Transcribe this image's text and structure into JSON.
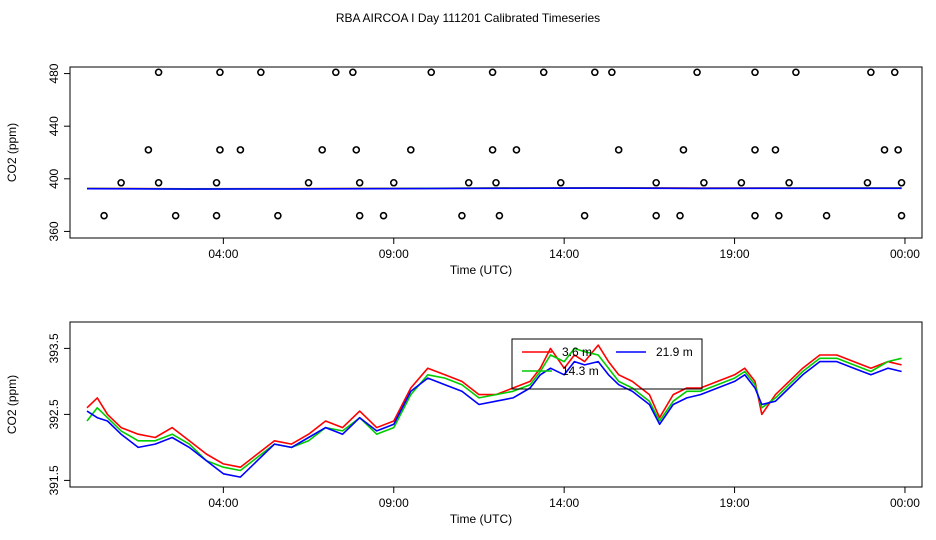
{
  "title": "RBA AIRCOA I  Day 111201  Calibrated Timeseries",
  "chart_data": [
    {
      "type": "line",
      "ylabel": "CO2 (ppm)",
      "xlabel": "Time (UTC)",
      "x_unit": "hours UTC",
      "xlim": [
        -0.5,
        24.5
      ],
      "ylim": [
        355,
        485
      ],
      "x_ticks": [
        4,
        9,
        14,
        19,
        24
      ],
      "x_tick_labels": [
        "04:00",
        "09:00",
        "14:00",
        "19:00",
        "00:00"
      ],
      "y_ticks": [
        360,
        400,
        440,
        480
      ],
      "y_tick_labels": [
        "360",
        "400",
        "440",
        "480"
      ],
      "grid": false,
      "series": [
        {
          "color": "#ff0000",
          "style": "line",
          "points": [
            [
              0.0,
              392.7
            ],
            [
              3.0,
              392.4
            ],
            [
              6.0,
              392.5
            ],
            [
              9.0,
              392.7
            ],
            [
              12.0,
              393.0
            ],
            [
              15.0,
              393.1
            ],
            [
              18.0,
              392.9
            ],
            [
              21.0,
              393.0
            ],
            [
              23.9,
              393.0
            ]
          ]
        },
        {
          "color": "#00cc00",
          "style": "line",
          "points": [
            [
              0.0,
              392.6
            ],
            [
              3.0,
              392.3
            ],
            [
              6.0,
              392.4
            ],
            [
              9.0,
              392.6
            ],
            [
              12.0,
              392.9
            ],
            [
              15.0,
              393.0
            ],
            [
              18.0,
              392.8
            ],
            [
              21.0,
              392.9
            ],
            [
              23.9,
              392.9
            ]
          ]
        },
        {
          "color": "#0000ff",
          "style": "line",
          "points": [
            [
              0.0,
              392.5
            ],
            [
              3.0,
              392.2
            ],
            [
              6.0,
              392.3
            ],
            [
              9.0,
              392.5
            ],
            [
              12.0,
              392.8
            ],
            [
              15.0,
              392.9
            ],
            [
              18.0,
              392.7
            ],
            [
              21.0,
              392.8
            ],
            [
              23.9,
              392.8
            ]
          ]
        },
        {
          "color": "#000000",
          "style": "points",
          "points": [
            [
              0.5,
              372
            ],
            [
              2.6,
              372
            ],
            [
              3.8,
              372
            ],
            [
              5.6,
              372
            ],
            [
              8.0,
              372
            ],
            [
              8.7,
              372
            ],
            [
              11.0,
              372
            ],
            [
              12.1,
              372
            ],
            [
              14.6,
              372
            ],
            [
              16.7,
              372
            ],
            [
              17.4,
              372
            ],
            [
              19.6,
              372
            ],
            [
              20.3,
              372
            ],
            [
              21.7,
              372
            ],
            [
              23.9,
              372
            ],
            [
              1.0,
              397
            ],
            [
              2.1,
              397
            ],
            [
              3.8,
              397
            ],
            [
              6.5,
              397
            ],
            [
              8.0,
              397
            ],
            [
              9.0,
              397
            ],
            [
              11.2,
              397
            ],
            [
              12.0,
              397
            ],
            [
              13.9,
              397
            ],
            [
              16.7,
              397
            ],
            [
              18.1,
              397
            ],
            [
              19.2,
              397
            ],
            [
              20.6,
              397
            ],
            [
              22.9,
              397
            ],
            [
              23.9,
              397
            ],
            [
              1.8,
              422
            ],
            [
              3.9,
              422
            ],
            [
              4.5,
              422
            ],
            [
              6.9,
              422
            ],
            [
              7.9,
              422
            ],
            [
              9.5,
              422
            ],
            [
              11.9,
              422
            ],
            [
              12.6,
              422
            ],
            [
              15.6,
              422
            ],
            [
              17.5,
              422
            ],
            [
              19.6,
              422
            ],
            [
              20.2,
              422
            ],
            [
              23.4,
              422
            ],
            [
              23.8,
              422
            ],
            [
              2.1,
              481
            ],
            [
              3.9,
              481
            ],
            [
              5.1,
              481
            ],
            [
              7.3,
              481
            ],
            [
              7.8,
              481
            ],
            [
              10.1,
              481
            ],
            [
              11.9,
              481
            ],
            [
              13.4,
              481
            ],
            [
              14.9,
              481
            ],
            [
              15.4,
              481
            ],
            [
              17.9,
              481
            ],
            [
              19.6,
              481
            ],
            [
              20.8,
              481
            ],
            [
              23.0,
              481
            ],
            [
              23.7,
              481
            ]
          ]
        }
      ]
    },
    {
      "type": "line",
      "ylabel": "CO2 (ppm)",
      "xlabel": "Time (UTC)",
      "x_unit": "hours UTC",
      "xlim": [
        -0.5,
        24.5
      ],
      "ylim": [
        391.4,
        393.9
      ],
      "x_ticks": [
        4,
        9,
        14,
        19,
        24
      ],
      "x_tick_labels": [
        "04:00",
        "09:00",
        "14:00",
        "19:00",
        "00:00"
      ],
      "y_ticks": [
        391.5,
        392.5,
        393.5
      ],
      "y_tick_labels": [
        "391.5",
        "392.5",
        "393.5"
      ],
      "grid": false,
      "legend": {
        "placement": "top-center",
        "entries": [
          {
            "label": "3.6 m",
            "color": "#ff0000"
          },
          {
            "label": "21.9 m",
            "color": "#0000ff"
          },
          {
            "label": "14.3 m",
            "color": "#00cc00"
          }
        ]
      },
      "series": [
        {
          "name": "3.6 m",
          "color": "#ff0000",
          "points": [
            [
              0.0,
              392.6
            ],
            [
              0.3,
              392.75
            ],
            [
              0.6,
              392.5
            ],
            [
              1.0,
              392.3
            ],
            [
              1.5,
              392.2
            ],
            [
              2.0,
              392.15
            ],
            [
              2.5,
              392.3
            ],
            [
              3.0,
              392.1
            ],
            [
              3.5,
              391.9
            ],
            [
              4.0,
              391.75
            ],
            [
              4.5,
              391.7
            ],
            [
              5.0,
              391.9
            ],
            [
              5.5,
              392.1
            ],
            [
              6.0,
              392.05
            ],
            [
              6.5,
              392.2
            ],
            [
              7.0,
              392.4
            ],
            [
              7.5,
              392.3
            ],
            [
              8.0,
              392.55
            ],
            [
              8.5,
              392.3
            ],
            [
              9.0,
              392.4
            ],
            [
              9.5,
              392.9
            ],
            [
              10.0,
              393.2
            ],
            [
              10.5,
              393.1
            ],
            [
              11.0,
              393.0
            ],
            [
              11.5,
              392.8
            ],
            [
              12.0,
              392.8
            ],
            [
              12.5,
              392.9
            ],
            [
              13.0,
              393.0
            ],
            [
              13.3,
              393.2
            ],
            [
              13.6,
              393.5
            ],
            [
              14.0,
              393.2
            ],
            [
              14.3,
              393.4
            ],
            [
              14.6,
              393.3
            ],
            [
              15.0,
              393.55
            ],
            [
              15.3,
              393.3
            ],
            [
              15.6,
              393.1
            ],
            [
              16.0,
              393.0
            ],
            [
              16.5,
              392.8
            ],
            [
              16.8,
              392.45
            ],
            [
              17.2,
              392.8
            ],
            [
              17.6,
              392.9
            ],
            [
              18.0,
              392.9
            ],
            [
              18.5,
              393.0
            ],
            [
              19.0,
              393.1
            ],
            [
              19.3,
              393.2
            ],
            [
              19.6,
              393.0
            ],
            [
              19.8,
              392.5
            ],
            [
              20.2,
              392.8
            ],
            [
              20.6,
              393.0
            ],
            [
              21.0,
              393.2
            ],
            [
              21.5,
              393.4
            ],
            [
              22.0,
              393.4
            ],
            [
              22.5,
              393.3
            ],
            [
              23.0,
              393.2
            ],
            [
              23.5,
              393.3
            ],
            [
              23.9,
              393.25
            ]
          ]
        },
        {
          "name": "14.3 m",
          "color": "#00cc00",
          "points": [
            [
              0.0,
              392.4
            ],
            [
              0.3,
              392.6
            ],
            [
              0.6,
              392.45
            ],
            [
              1.0,
              392.25
            ],
            [
              1.5,
              392.1
            ],
            [
              2.0,
              392.1
            ],
            [
              2.5,
              392.2
            ],
            [
              3.0,
              392.05
            ],
            [
              3.5,
              391.8
            ],
            [
              4.0,
              391.7
            ],
            [
              4.5,
              391.65
            ],
            [
              5.0,
              391.85
            ],
            [
              5.5,
              392.05
            ],
            [
              6.0,
              392.0
            ],
            [
              6.5,
              392.1
            ],
            [
              7.0,
              392.3
            ],
            [
              7.5,
              392.25
            ],
            [
              8.0,
              392.45
            ],
            [
              8.5,
              392.2
            ],
            [
              9.0,
              392.3
            ],
            [
              9.5,
              392.8
            ],
            [
              10.0,
              393.1
            ],
            [
              10.5,
              393.05
            ],
            [
              11.0,
              392.95
            ],
            [
              11.5,
              392.75
            ],
            [
              12.0,
              392.8
            ],
            [
              12.5,
              392.85
            ],
            [
              13.0,
              392.95
            ],
            [
              13.3,
              393.15
            ],
            [
              13.6,
              393.4
            ],
            [
              14.0,
              393.3
            ],
            [
              14.3,
              393.5
            ],
            [
              14.6,
              393.45
            ],
            [
              15.0,
              393.4
            ],
            [
              15.3,
              393.2
            ],
            [
              15.6,
              393.0
            ],
            [
              16.0,
              392.9
            ],
            [
              16.5,
              392.7
            ],
            [
              16.8,
              392.4
            ],
            [
              17.2,
              392.7
            ],
            [
              17.6,
              392.85
            ],
            [
              18.0,
              392.85
            ],
            [
              18.5,
              392.95
            ],
            [
              19.0,
              393.05
            ],
            [
              19.3,
              393.15
            ],
            [
              19.6,
              392.95
            ],
            [
              19.8,
              392.6
            ],
            [
              20.2,
              392.75
            ],
            [
              20.6,
              392.95
            ],
            [
              21.0,
              393.15
            ],
            [
              21.5,
              393.35
            ],
            [
              22.0,
              393.35
            ],
            [
              22.5,
              393.25
            ],
            [
              23.0,
              393.15
            ],
            [
              23.5,
              393.3
            ],
            [
              23.9,
              393.35
            ]
          ]
        },
        {
          "name": "21.9 m",
          "color": "#0000ff",
          "points": [
            [
              0.0,
              392.55
            ],
            [
              0.3,
              392.45
            ],
            [
              0.6,
              392.4
            ],
            [
              1.0,
              392.2
            ],
            [
              1.5,
              392.0
            ],
            [
              2.0,
              392.05
            ],
            [
              2.5,
              392.15
            ],
            [
              3.0,
              392.0
            ],
            [
              3.5,
              391.8
            ],
            [
              4.0,
              391.6
            ],
            [
              4.5,
              391.55
            ],
            [
              5.0,
              391.8
            ],
            [
              5.5,
              392.05
            ],
            [
              6.0,
              392.0
            ],
            [
              6.5,
              392.15
            ],
            [
              7.0,
              392.3
            ],
            [
              7.5,
              392.2
            ],
            [
              8.0,
              392.45
            ],
            [
              8.5,
              392.25
            ],
            [
              9.0,
              392.35
            ],
            [
              9.5,
              392.85
            ],
            [
              10.0,
              393.05
            ],
            [
              10.5,
              392.95
            ],
            [
              11.0,
              392.85
            ],
            [
              11.5,
              392.65
            ],
            [
              12.0,
              392.7
            ],
            [
              12.5,
              392.75
            ],
            [
              13.0,
              392.9
            ],
            [
              13.3,
              393.1
            ],
            [
              13.6,
              393.2
            ],
            [
              14.0,
              393.1
            ],
            [
              14.3,
              393.3
            ],
            [
              14.6,
              393.25
            ],
            [
              15.0,
              393.3
            ],
            [
              15.3,
              393.1
            ],
            [
              15.6,
              392.95
            ],
            [
              16.0,
              392.85
            ],
            [
              16.5,
              392.65
            ],
            [
              16.8,
              392.35
            ],
            [
              17.2,
              392.65
            ],
            [
              17.6,
              392.75
            ],
            [
              18.0,
              392.8
            ],
            [
              18.5,
              392.9
            ],
            [
              19.0,
              393.0
            ],
            [
              19.3,
              393.1
            ],
            [
              19.6,
              392.9
            ],
            [
              19.8,
              392.65
            ],
            [
              20.2,
              392.7
            ],
            [
              20.6,
              392.9
            ],
            [
              21.0,
              393.1
            ],
            [
              21.5,
              393.3
            ],
            [
              22.0,
              393.3
            ],
            [
              22.5,
              393.2
            ],
            [
              23.0,
              393.1
            ],
            [
              23.5,
              393.2
            ],
            [
              23.9,
              393.15
            ]
          ]
        }
      ]
    }
  ]
}
